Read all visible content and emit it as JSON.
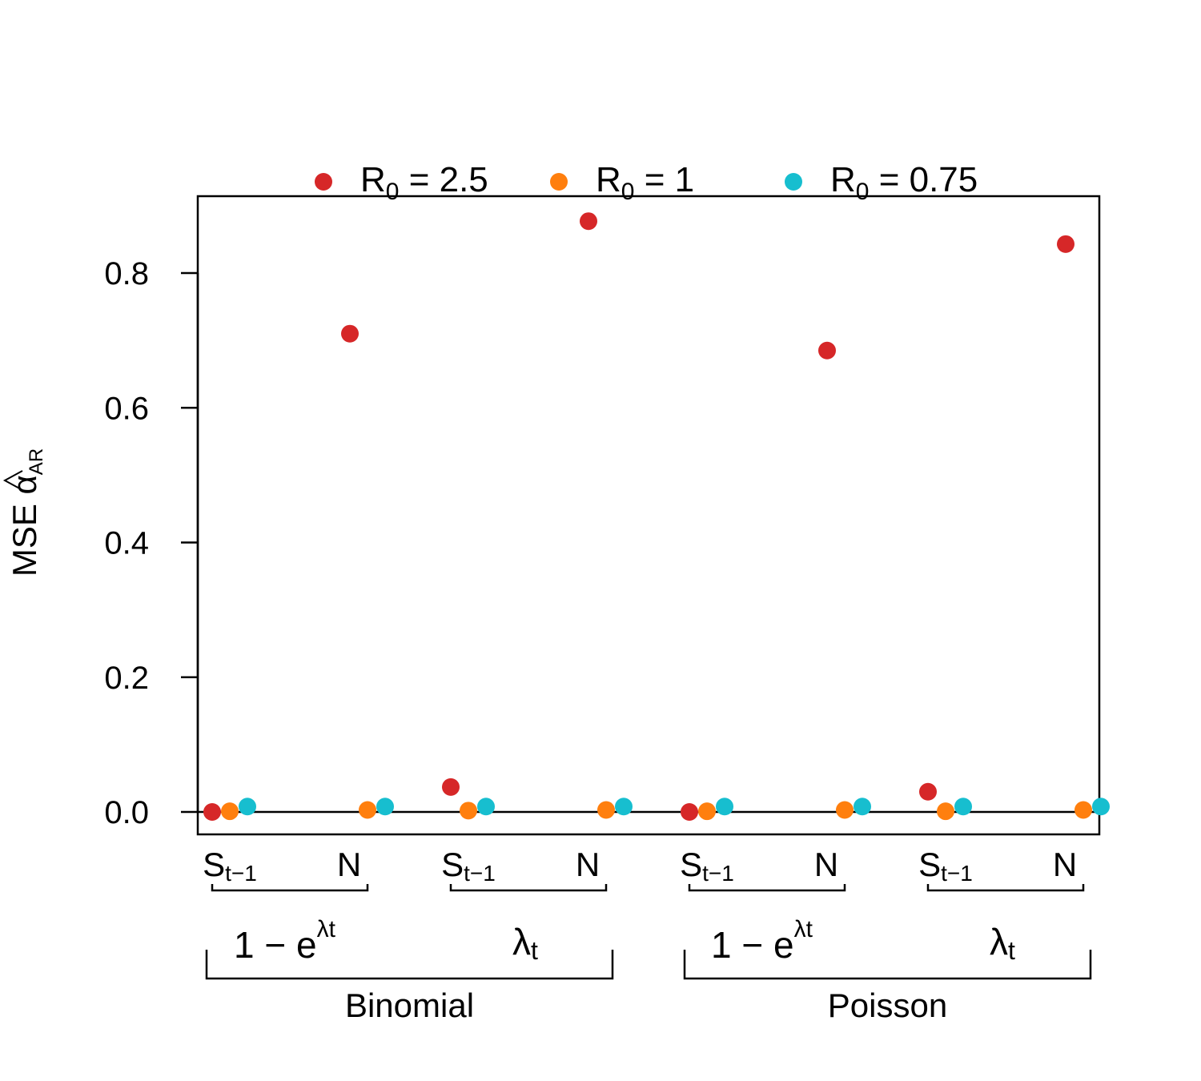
{
  "chart_data": {
    "type": "scatter",
    "xlabel": "",
    "ylabel": {
      "prefix": "MSE ",
      "symbol": "α",
      "subscript": "AR"
    },
    "ylim": [
      0,
      0.9
    ],
    "yticks": [
      "0.0",
      "0.2",
      "0.4",
      "0.6",
      "0.8"
    ],
    "ytick_values": [
      0.0,
      0.2,
      0.4,
      0.6,
      0.8
    ],
    "legend_position": "top",
    "categories": [
      {
        "base": "S",
        "sub": "t−1"
      },
      {
        "base": "N",
        "sub": ""
      },
      {
        "base": "S",
        "sub": "t−1"
      },
      {
        "base": "N",
        "sub": ""
      },
      {
        "base": "S",
        "sub": "t−1"
      },
      {
        "base": "N",
        "sub": ""
      },
      {
        "base": "S",
        "sub": "t−1"
      },
      {
        "base": "N",
        "sub": ""
      }
    ],
    "link_groups": [
      {
        "type": "exp",
        "prefix": "1 − e",
        "sup": "λt"
      },
      {
        "type": "lambda",
        "base": "λ",
        "sub": "t"
      },
      {
        "type": "exp",
        "prefix": "1 − e",
        "sup": "λt"
      },
      {
        "type": "lambda",
        "base": "λ",
        "sub": "t"
      }
    ],
    "distribution_groups": [
      "Binomial",
      "Poisson"
    ],
    "series": [
      {
        "name": "R0 = 2.5",
        "legend": {
          "base": "R",
          "sub": "0",
          "rest": " = 2.5"
        },
        "color": "#d62728",
        "values": [
          0.0,
          0.71,
          0.037,
          0.877,
          0.0,
          0.685,
          0.03,
          0.843
        ]
      },
      {
        "name": "R0 = 1",
        "legend": {
          "base": "R",
          "sub": "0",
          "rest": " = 1"
        },
        "color": "#ff7f0e",
        "values": [
          0.001,
          0.003,
          0.002,
          0.003,
          0.001,
          0.003,
          0.001,
          0.003
        ]
      },
      {
        "name": "R0 = 0.75",
        "legend": {
          "base": "R",
          "sub": "0",
          "rest": " = 0.75"
        },
        "color": "#17becf",
        "values": [
          0.008,
          0.008,
          0.008,
          0.008,
          0.008,
          0.008,
          0.008,
          0.008
        ]
      }
    ]
  }
}
